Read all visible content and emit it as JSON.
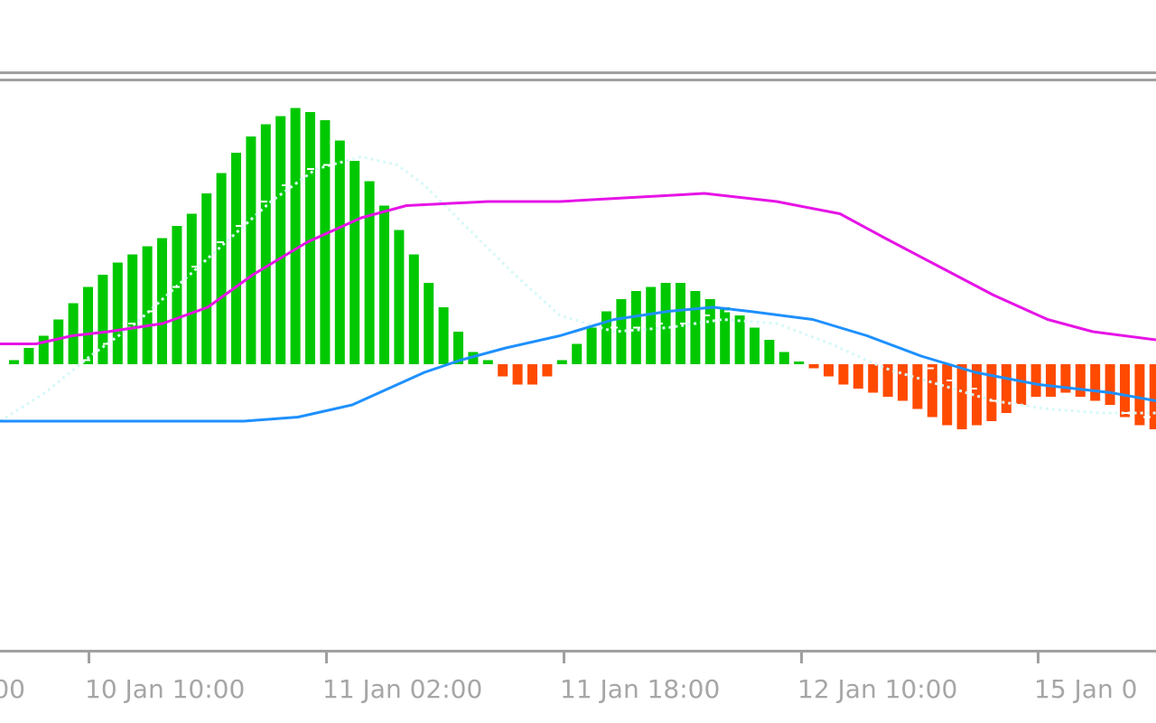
{
  "chart_data": {
    "type": "bar",
    "indicator": "MACD-style histogram with signal lines",
    "x_tick_labels": [
      "00",
      "10 Jan 10:00",
      "11 Jan 02:00",
      "11 Jan 18:00",
      "12 Jan 10:00",
      "15 Jan 0"
    ],
    "baseline": 0,
    "ylim": [
      -0.53,
      0.57
    ],
    "grid": false,
    "colors": {
      "positive_bar": "#00c800",
      "negative_bar": "#ff4a00",
      "magenta_line": "#e614e6",
      "blue_line": "#1e90ff",
      "cyan_dotted_line": "#d8f8f8",
      "white_marks": "#ffffff",
      "axis": "#a0a0a0",
      "tick_text": "#a6a6a6",
      "background": "#ffffff"
    },
    "histogram": [
      0.01,
      0.04,
      0.07,
      0.11,
      0.15,
      0.19,
      0.22,
      0.25,
      0.27,
      0.29,
      0.31,
      0.34,
      0.37,
      0.42,
      0.47,
      0.52,
      0.56,
      0.59,
      0.61,
      0.63,
      0.62,
      0.6,
      0.55,
      0.5,
      0.45,
      0.39,
      0.33,
      0.27,
      0.2,
      0.14,
      0.08,
      0.03,
      0.01,
      -0.03,
      -0.05,
      -0.05,
      -0.03,
      0.01,
      0.05,
      0.09,
      0.13,
      0.16,
      0.18,
      0.19,
      0.2,
      0.2,
      0.18,
      0.16,
      0.14,
      0.12,
      0.09,
      0.06,
      0.03,
      0.005,
      -0.01,
      -0.03,
      -0.05,
      -0.06,
      -0.07,
      -0.08,
      -0.09,
      -0.11,
      -0.13,
      -0.15,
      -0.16,
      -0.15,
      -0.14,
      -0.12,
      -0.1,
      -0.08,
      -0.08,
      -0.07,
      -0.08,
      -0.09,
      -0.1,
      -0.13,
      -0.15,
      -0.16
    ],
    "magenta_line": {
      "x": [
        0,
        40,
        80,
        120,
        180,
        230,
        280,
        340,
        400,
        450,
        540,
        620,
        700,
        780,
        860,
        930,
        980,
        1040,
        1100,
        1160,
        1210,
        1280
      ],
      "y": [
        0.05,
        0.05,
        0.07,
        0.08,
        0.1,
        0.14,
        0.22,
        0.3,
        0.36,
        0.39,
        0.4,
        0.4,
        0.41,
        0.42,
        0.4,
        0.37,
        0.31,
        0.24,
        0.17,
        0.11,
        0.08,
        0.06
      ]
    },
    "blue_line": {
      "x": [
        0,
        100,
        200,
        270,
        330,
        390,
        430,
        470,
        510,
        560,
        620,
        680,
        740,
        790,
        830,
        900,
        960,
        1020,
        1080,
        1150,
        1230,
        1280
      ],
      "y": [
        -0.14,
        -0.14,
        -0.14,
        -0.14,
        -0.13,
        -0.1,
        -0.06,
        -0.02,
        0.01,
        0.04,
        0.07,
        0.11,
        0.13,
        0.14,
        0.13,
        0.11,
        0.07,
        0.02,
        -0.02,
        -0.05,
        -0.07,
        -0.09
      ]
    },
    "cyan_dotted_line": {
      "x": [
        0,
        50,
        100,
        150,
        200,
        250,
        300,
        350,
        400,
        440,
        470,
        520,
        570,
        620,
        680,
        740,
        800,
        860,
        920,
        980,
        1040,
        1100,
        1160,
        1220,
        1280
      ],
      "y": [
        -0.14,
        -0.07,
        0.02,
        0.1,
        0.2,
        0.3,
        0.4,
        0.48,
        0.51,
        0.49,
        0.44,
        0.33,
        0.22,
        0.12,
        0.08,
        0.09,
        0.11,
        0.1,
        0.05,
        -0.01,
        -0.05,
        -0.09,
        -0.11,
        -0.12,
        -0.12
      ]
    },
    "white_marks": [
      [
        96,
        0.01
      ],
      [
        118,
        0.05
      ],
      [
        146,
        0.1
      ],
      [
        168,
        0.13
      ],
      [
        195,
        0.19
      ],
      [
        216,
        0.24
      ],
      [
        244,
        0.3
      ],
      [
        265,
        0.34
      ],
      [
        292,
        0.4
      ],
      [
        316,
        0.44
      ],
      [
        344,
        0.48
      ],
      [
        362,
        0.49
      ],
      [
        680,
        0.09
      ],
      [
        705,
        0.09
      ],
      [
        730,
        0.1
      ],
      [
        757,
        0.1
      ],
      [
        782,
        0.12
      ],
      [
        806,
        0.13
      ],
      [
        1030,
        -0.01
      ],
      [
        1052,
        -0.04
      ],
      [
        1078,
        -0.06
      ],
      [
        1100,
        -0.09
      ],
      [
        1126,
        -0.1
      ],
      [
        1248,
        -0.12
      ],
      [
        1270,
        -0.13
      ]
    ]
  }
}
